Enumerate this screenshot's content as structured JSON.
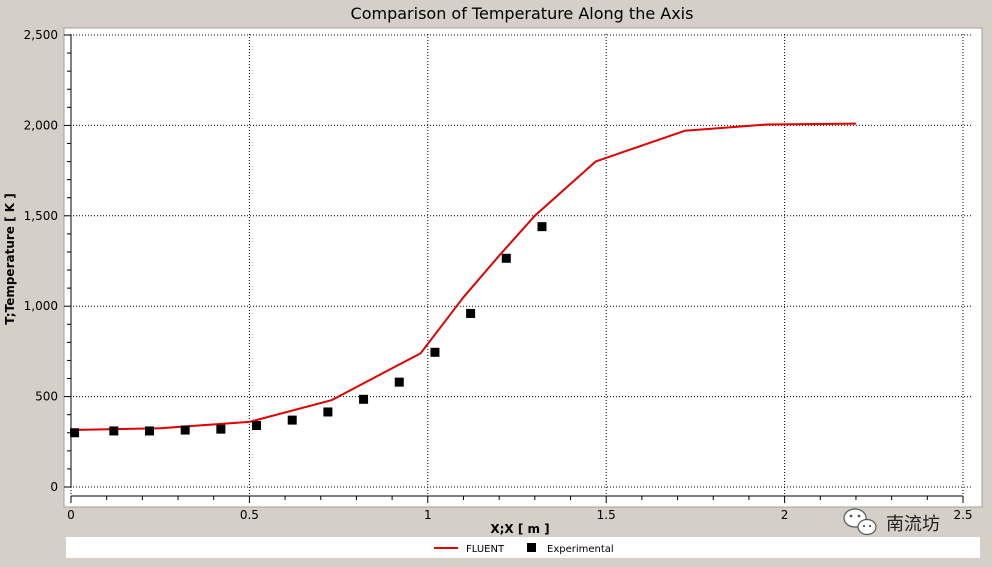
{
  "chart_data": {
    "type": "line",
    "title": "Comparison of Temperature Along the Axis",
    "xlabel": "X;X [ m ]",
    "ylabel": "T;Temperature [ K ]",
    "xlim": [
      0,
      2.5
    ],
    "ylim": [
      0,
      2500
    ],
    "x_ticks": [
      0,
      0.5,
      1,
      1.5,
      2,
      2.5
    ],
    "x_tick_labels": [
      "0",
      "0.5",
      "1",
      "1.5",
      "2",
      "2.5"
    ],
    "y_ticks": [
      0,
      500,
      1000,
      1500,
      2000,
      2500
    ],
    "y_tick_labels": [
      "0",
      "500",
      "1,000",
      "1,500",
      "2,000",
      "2,500"
    ],
    "grid": true,
    "legend_position": "bottom",
    "series": [
      {
        "name": "FLUENT",
        "style": "line",
        "color": "#e00000",
        "x": [
          0,
          0.25,
          0.5,
          0.73,
          0.98,
          1.1,
          1.2,
          1.3,
          1.47,
          1.72,
          1.95,
          2.2
        ],
        "y": [
          315,
          325,
          360,
          480,
          740,
          1050,
          1280,
          1500,
          1800,
          1970,
          2005,
          2010
        ]
      },
      {
        "name": "Experimental",
        "style": "marker",
        "marker": "square",
        "color": "#000000",
        "x": [
          0.01,
          0.12,
          0.22,
          0.32,
          0.42,
          0.52,
          0.62,
          0.72,
          0.82,
          0.92,
          1.02,
          1.12,
          1.22,
          1.32
        ],
        "y": [
          300,
          310,
          310,
          315,
          320,
          340,
          370,
          415,
          485,
          580,
          745,
          960,
          1265,
          1440
        ]
      }
    ]
  },
  "watermark": {
    "text": "南流坊",
    "icon": "wechat-icon"
  },
  "colors": {
    "window_bg": "#d4d0c8",
    "plot_bg": "#ffffff",
    "grid": "#000000"
  }
}
